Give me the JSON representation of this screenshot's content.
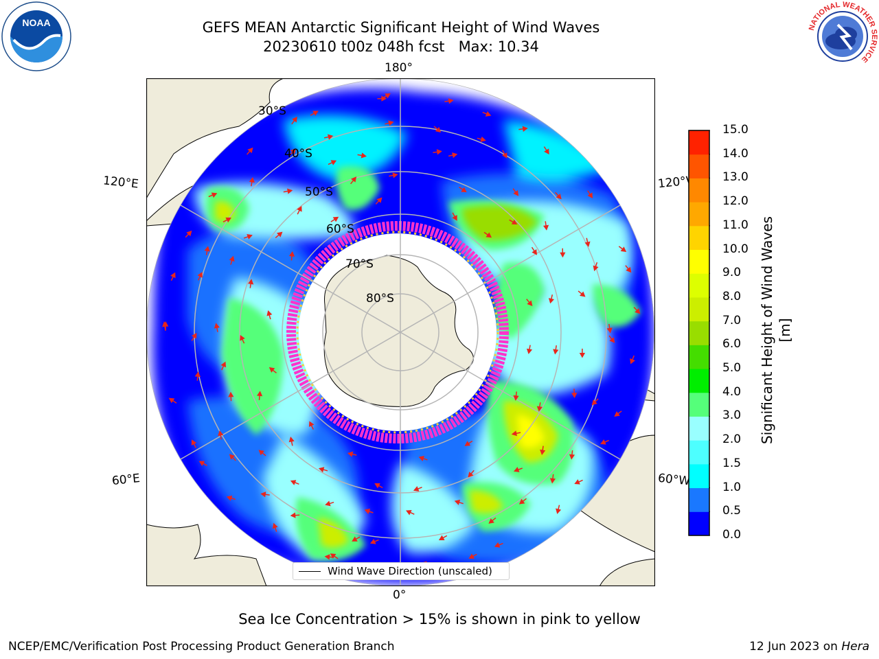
{
  "title": {
    "line1": "GEFS MEAN Antarctic Significant Height of Wind Waves",
    "line2": "20230610 t00z 048h fcst   Max: 10.34"
  },
  "map": {
    "projection": "south-polar-stereographic",
    "longitude_labels": {
      "top": "180°",
      "bottom": "0°",
      "upper_left": "120°E",
      "upper_right": "120°W",
      "lower_left": "60°E",
      "lower_right": "60°W"
    },
    "latitude_labels": [
      "30°S",
      "40°S",
      "50°S",
      "60°S",
      "70°S",
      "80°S"
    ],
    "legend": "Wind Wave Direction (unscaled)",
    "colors": {
      "land": "#efecdb",
      "ocean_open": "#ffffff",
      "graticule": "#b5b5b5",
      "arrow": "#e8261c",
      "sea_ice_edge": "#ff33cc",
      "sea_ice_inner": "#ffcc33"
    }
  },
  "colorbar": {
    "label": "Significant Height of Wind Waves [m]",
    "ticks": [
      "0.0",
      "0.5",
      "1.0",
      "1.5",
      "2.0",
      "3.0",
      "4.0",
      "5.0",
      "6.0",
      "7.0",
      "8.0",
      "9.0",
      "10.0",
      "11.0",
      "12.0",
      "13.0",
      "14.0",
      "15.0"
    ],
    "colors": [
      "#0000ff",
      "#1a78ff",
      "#00ffff",
      "#4dffff",
      "#99ffff",
      "#55ff7a",
      "#00ee00",
      "#44dd00",
      "#99dd00",
      "#ccee00",
      "#ddff00",
      "#ffff00",
      "#ffd400",
      "#ffa800",
      "#ff8800",
      "#ff5500",
      "#ff2200"
    ]
  },
  "note": "Sea Ice Concentration > 15% is shown in pink to yellow",
  "footer": {
    "left": "NCEP/EMC/Verification Post Processing Product Generation Branch",
    "right_date": "12 Jun 2023 on ",
    "right_host": "Hera"
  },
  "logos": {
    "noaa_icon": "noaa-logo-icon",
    "nws_icon": "nws-logo-icon",
    "noaa_text": "NOAA",
    "nws_ring_text": "NATIONAL WEATHER SERVICE"
  }
}
